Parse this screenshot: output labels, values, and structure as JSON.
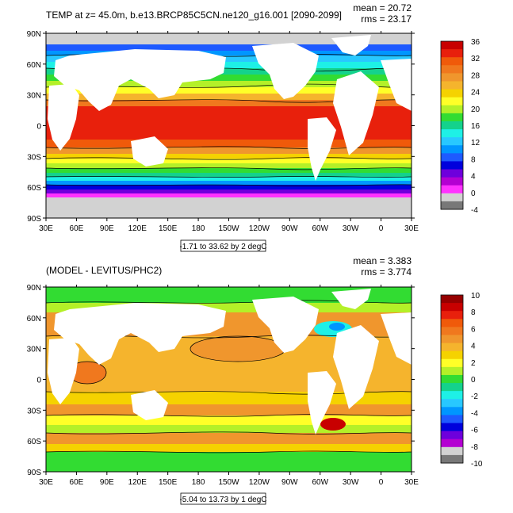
{
  "panels": [
    {
      "title": "TEMP at z=  45.0m, b.e13.BRCP85C5CN.ne120_g16.001 [2090-2099]",
      "mean_text": "mean = 20.72",
      "rms_text": "rms = 23.17",
      "contour_info": "-1.71 to 33.62 by 2 degC",
      "colorbar_labels": [
        "36",
        "32",
        "28",
        "24",
        "20",
        "16",
        "12",
        "8",
        "4",
        "0",
        "-4"
      ],
      "colorbar_colors": [
        "#c80000",
        "#e8200c",
        "#f05a0a",
        "#f0781e",
        "#f0962d",
        "#f5b42d",
        "#f5d200",
        "#ffff28",
        "#b4f028",
        "#32dc32",
        "#14d28c",
        "#1ef0e6",
        "#28c8ff",
        "#0096ff",
        "#1e5aff",
        "#0000dc",
        "#6e00dc",
        "#b400d2",
        "#ff32ff",
        "#d2d2d2",
        "#787878"
      ]
    },
    {
      "title": "(MODEL - LEVITUS/PHC2)",
      "mean_text": "mean = 3.383",
      "rms_text": "rms = 3.774",
      "contour_info": "-5.04 to 13.73 by 1 degC",
      "colorbar_labels": [
        "10",
        "8",
        "6",
        "4",
        "2",
        "0",
        "-2",
        "-4",
        "-6",
        "-8",
        "-10"
      ],
      "colorbar_colors": [
        "#960000",
        "#c80000",
        "#e8200c",
        "#f05a0a",
        "#f0781e",
        "#f0962d",
        "#f5b42d",
        "#f5d200",
        "#ffff28",
        "#b4f028",
        "#32dc32",
        "#14d28c",
        "#1ef0e6",
        "#28c8ff",
        "#0096ff",
        "#1e5aff",
        "#0000dc",
        "#6e00dc",
        "#b400d2",
        "#d2d2d2",
        "#787878"
      ]
    }
  ],
  "axes": {
    "lat_labels": [
      "90N",
      "60N",
      "30N",
      "0",
      "30S",
      "60S",
      "90S"
    ],
    "lon_labels": [
      "30E",
      "60E",
      "90E",
      "120E",
      "150E",
      "180",
      "150W",
      "120W",
      "90W",
      "60W",
      "30W",
      "0",
      "30E"
    ]
  }
}
